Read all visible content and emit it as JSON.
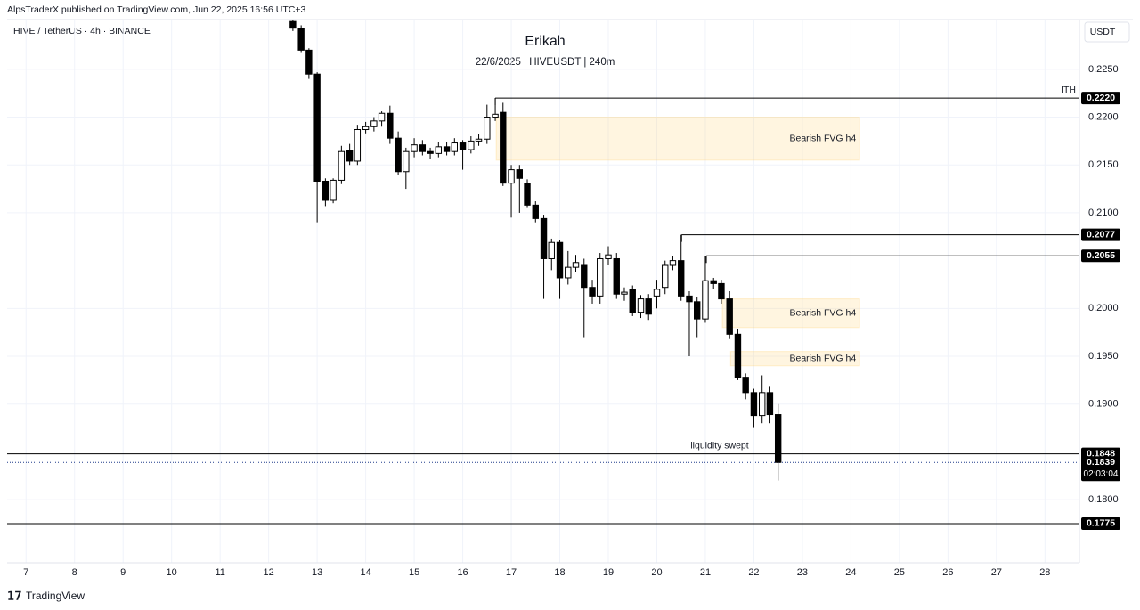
{
  "chart_data": {
    "type": "candlestick",
    "published": "AlpsTraderX published on TradingView.com, Jun 22, 2025 16:56 UTC+3",
    "symbol": "HIVE / TetherUS · 4h · BINANCE",
    "title": "Erikah",
    "subtitle": "22/6/2025 | HIVEUSDT | 240m",
    "currency": "USDT",
    "footer": "TradingView",
    "up_color": "#ffffff",
    "down_color": "#000000",
    "grid": true,
    "xlim": [
      6.61,
      28.71
    ],
    "xticks": [
      7,
      8,
      9,
      10,
      11,
      12,
      13,
      14,
      15,
      16,
      17,
      18,
      19,
      20,
      21,
      22,
      23,
      24,
      25,
      26,
      27,
      28
    ],
    "ylim": [
      0.1734,
      0.2302
    ],
    "yticks": [
      {
        "value": 0.225,
        "label": "0.2250"
      },
      {
        "value": 0.22,
        "label": "0.2200"
      },
      {
        "value": 0.215,
        "label": "0.2150"
      },
      {
        "value": 0.21,
        "label": "0.2100"
      },
      {
        "value": 0.2,
        "label": "0.2000"
      },
      {
        "value": 0.195,
        "label": "0.1950"
      },
      {
        "value": 0.19,
        "label": "0.1900"
      },
      {
        "value": 0.18,
        "label": "0.1800"
      }
    ],
    "x": [
      12.5,
      12.67,
      12.83,
      13,
      13.17,
      13.33,
      13.5,
      13.67,
      13.83,
      14,
      14.17,
      14.33,
      14.5,
      14.67,
      14.83,
      15,
      15.17,
      15.33,
      15.5,
      15.67,
      15.83,
      16,
      16.17,
      16.33,
      16.5,
      16.67,
      16.83,
      17,
      17.17,
      17.33,
      17.5,
      17.67,
      17.83,
      18,
      18.17,
      18.33,
      18.5,
      18.67,
      18.83,
      19,
      19.17,
      19.33,
      19.5,
      19.67,
      19.83,
      20,
      20.17,
      20.33,
      20.5,
      20.67,
      20.83,
      21,
      21.17,
      21.33,
      21.5,
      21.67,
      21.83,
      22,
      22.17,
      22.33,
      22.5
    ],
    "open": [
      0.23,
      0.2293,
      0.227,
      0.2245,
      0.2133,
      0.2113,
      0.2134,
      0.2165,
      0.2154,
      0.2187,
      0.219,
      0.2196,
      0.2204,
      0.2178,
      0.2143,
      0.2164,
      0.2171,
      0.2164,
      0.2162,
      0.2169,
      0.2164,
      0.2173,
      0.2166,
      0.2175,
      0.2177,
      0.22,
      0.2205,
      0.2131,
      0.2145,
      0.2131,
      0.2108,
      0.2094,
      0.2052,
      0.2069,
      0.2032,
      0.2043,
      0.2045,
      0.2022,
      0.2013,
      0.2052,
      0.2052,
      0.2015,
      0.202,
      0.1996,
      0.201,
      0.2013,
      0.2022,
      0.2045,
      0.205,
      0.2013,
      0.2007,
      0.1989,
      0.2029,
      0.2026,
      0.201,
      0.1973,
      0.1928,
      0.1912,
      0.1888,
      0.1912,
      0.1889
    ],
    "high": [
      0.2302,
      0.2296,
      0.2272,
      0.2247,
      0.2136,
      0.2136,
      0.217,
      0.2172,
      0.2192,
      0.2195,
      0.22,
      0.2206,
      0.2212,
      0.2185,
      0.2168,
      0.2178,
      0.2176,
      0.2168,
      0.2174,
      0.2174,
      0.2178,
      0.2176,
      0.218,
      0.2182,
      0.2213,
      0.222,
      0.2215,
      0.215,
      0.215,
      0.2135,
      0.2112,
      0.2098,
      0.2073,
      0.2072,
      0.206,
      0.2056,
      0.2052,
      0.203,
      0.2058,
      0.2065,
      0.2058,
      0.2022,
      0.2024,
      0.2014,
      0.2015,
      0.203,
      0.205,
      0.2055,
      0.2077,
      0.2018,
      0.2012,
      0.2055,
      0.2032,
      0.203,
      0.2018,
      0.1978,
      0.1932,
      0.1916,
      0.193,
      0.1918,
      0.19
    ],
    "low": [
      0.229,
      0.2268,
      0.224,
      0.209,
      0.2107,
      0.211,
      0.213,
      0.215,
      0.215,
      0.2183,
      0.2185,
      0.219,
      0.2172,
      0.214,
      0.2125,
      0.2158,
      0.216,
      0.2156,
      0.2158,
      0.216,
      0.216,
      0.2145,
      0.2162,
      0.217,
      0.2172,
      0.2196,
      0.2128,
      0.2095,
      0.21,
      0.2105,
      0.209,
      0.201,
      0.204,
      0.201,
      0.2025,
      0.2038,
      0.197,
      0.2005,
      0.2005,
      0.2045,
      0.201,
      0.2008,
      0.1992,
      0.199,
      0.1988,
      0.2,
      0.2015,
      0.204,
      0.2008,
      0.195,
      0.197,
      0.1985,
      0.202,
      0.2005,
      0.1968,
      0.1925,
      0.1905,
      0.1875,
      0.188,
      0.188,
      0.182
    ],
    "close": [
      0.2293,
      0.227,
      0.2245,
      0.2133,
      0.2113,
      0.2134,
      0.2164,
      0.2154,
      0.2187,
      0.219,
      0.2196,
      0.2204,
      0.2178,
      0.2143,
      0.2164,
      0.2171,
      0.2164,
      0.2162,
      0.2169,
      0.2164,
      0.2173,
      0.2166,
      0.2175,
      0.2177,
      0.22,
      0.2203,
      0.2131,
      0.2145,
      0.2136,
      0.2108,
      0.2094,
      0.2052,
      0.2069,
      0.2032,
      0.2043,
      0.2048,
      0.2022,
      0.2013,
      0.2052,
      0.2056,
      0.2015,
      0.2017,
      0.1996,
      0.201,
      0.1994,
      0.202,
      0.2045,
      0.205,
      0.2013,
      0.2007,
      0.1989,
      0.2029,
      0.2026,
      0.201,
      0.1973,
      0.1928,
      0.1912,
      0.1888,
      0.1912,
      0.1889,
      0.1839
    ],
    "levels": [
      {
        "value": 0.222,
        "label": "0.2220",
        "x_start": 16.67,
        "note": "ITH"
      },
      {
        "value": 0.2077,
        "label": "0.2077",
        "x_start": 20.51
      },
      {
        "value": 0.2055,
        "label": "0.2055",
        "x_start": 21.02
      },
      {
        "value": 0.1848,
        "label": "0.1848",
        "x_start": 6.61,
        "note": "liquidity swept"
      },
      {
        "value": 0.1775,
        "label": "0.1775",
        "x_start": 6.61
      }
    ],
    "last_price": {
      "value": 0.1839,
      "label": "0.1839",
      "countdown": "02:03:04"
    },
    "zones": [
      {
        "top": 0.22,
        "bottom": 0.2155,
        "x_start": 16.69,
        "x_end": 24.18,
        "label": "Bearish FVG h4"
      },
      {
        "top": 0.201,
        "bottom": 0.198,
        "x_start": 21.35,
        "x_end": 24.18,
        "label": "Bearish FVG h4"
      },
      {
        "top": 0.1955,
        "bottom": 0.194,
        "x_start": 21.52,
        "x_end": 24.18,
        "label": "Bearish FVG h4"
      }
    ]
  }
}
